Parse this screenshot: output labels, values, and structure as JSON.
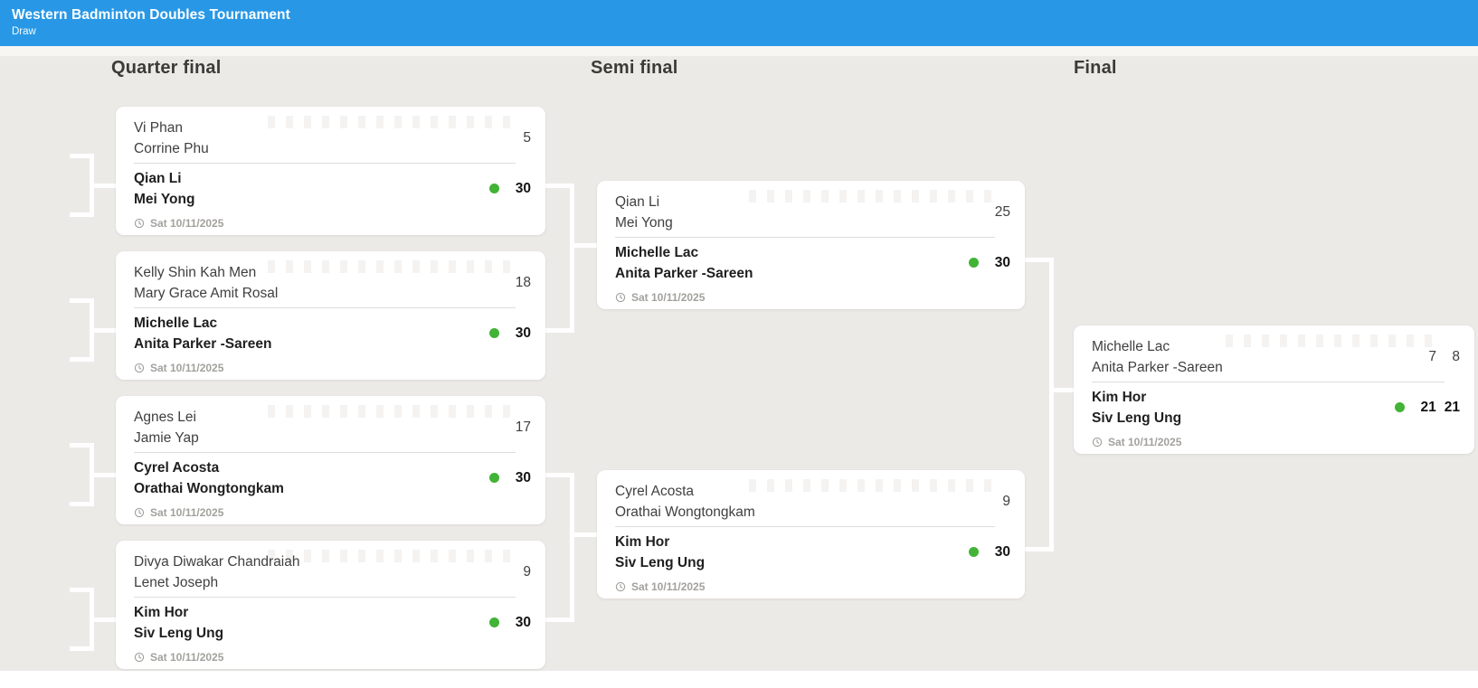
{
  "header": {
    "title": "Western Badminton Doubles Tournament",
    "subtitle": "Draw"
  },
  "colors": {
    "header_bg": "#2898e6",
    "page_bg": "#eceae7",
    "winner_dot": "#41b336"
  },
  "rounds": [
    {
      "label": "Quarter final",
      "matches": [
        {
          "team1": {
            "players": [
              "Vi Phan",
              "Corrine Phu"
            ],
            "scores": [
              "5"
            ],
            "winner": false
          },
          "team2": {
            "players": [
              "Qian Li",
              "Mei Yong"
            ],
            "scores": [
              "30"
            ],
            "winner": true
          },
          "date": "Sat 10/11/2025"
        },
        {
          "team1": {
            "players": [
              "Kelly Shin Kah Men",
              "Mary Grace Amit Rosal"
            ],
            "scores": [
              "18"
            ],
            "winner": false
          },
          "team2": {
            "players": [
              "Michelle Lac",
              "Anita Parker -Sareen"
            ],
            "scores": [
              "30"
            ],
            "winner": true
          },
          "date": "Sat 10/11/2025"
        },
        {
          "team1": {
            "players": [
              "Agnes Lei",
              "Jamie Yap"
            ],
            "scores": [
              "17"
            ],
            "winner": false
          },
          "team2": {
            "players": [
              "Cyrel Acosta",
              "Orathai Wongtongkam"
            ],
            "scores": [
              "30"
            ],
            "winner": true
          },
          "date": "Sat 10/11/2025"
        },
        {
          "team1": {
            "players": [
              "Divya Diwakar Chandraiah",
              "Lenet Joseph"
            ],
            "scores": [
              "9"
            ],
            "winner": false
          },
          "team2": {
            "players": [
              "Kim Hor",
              "Siv Leng Ung"
            ],
            "scores": [
              "30"
            ],
            "winner": true
          },
          "date": "Sat 10/11/2025"
        }
      ]
    },
    {
      "label": "Semi final",
      "matches": [
        {
          "team1": {
            "players": [
              "Qian Li",
              "Mei Yong"
            ],
            "scores": [
              "25"
            ],
            "winner": false
          },
          "team2": {
            "players": [
              "Michelle Lac",
              "Anita Parker -Sareen"
            ],
            "scores": [
              "30"
            ],
            "winner": true
          },
          "date": "Sat 10/11/2025"
        },
        {
          "team1": {
            "players": [
              "Cyrel Acosta",
              "Orathai Wongtongkam"
            ],
            "scores": [
              "9"
            ],
            "winner": false
          },
          "team2": {
            "players": [
              "Kim Hor",
              "Siv Leng Ung"
            ],
            "scores": [
              "30"
            ],
            "winner": true
          },
          "date": "Sat 10/11/2025"
        }
      ]
    },
    {
      "label": "Final",
      "matches": [
        {
          "team1": {
            "players": [
              "Michelle Lac",
              "Anita Parker -Sareen"
            ],
            "scores": [
              "7",
              "8"
            ],
            "winner": false
          },
          "team2": {
            "players": [
              "Kim Hor",
              "Siv Leng Ung"
            ],
            "scores": [
              "21",
              "21"
            ],
            "winner": true
          },
          "date": "Sat 10/11/2025"
        }
      ]
    }
  ]
}
